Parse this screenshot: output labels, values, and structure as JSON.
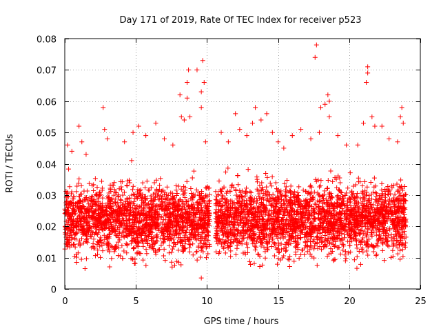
{
  "chart_data": {
    "type": "scatter",
    "title": "Day 171 of 2019, Rate Of TEC Index for receiver p523",
    "xlabel": "GPS time / hours",
    "ylabel": "ROTI / TECUs",
    "xlim": [
      0,
      25
    ],
    "ylim": [
      0,
      0.08
    ],
    "x_ticks": [
      "0",
      "5",
      "10",
      "15",
      "20",
      "25"
    ],
    "y_ticks": [
      "0",
      "0.01",
      "0.02",
      "0.03",
      "0.04",
      "0.05",
      "0.06",
      "0.07",
      "0.08"
    ],
    "grid": true,
    "marker": "+",
    "series": [
      {
        "color": "#ff0000",
        "points": [
          [
            0.2,
            0.046
          ],
          [
            0.5,
            0.044
          ],
          [
            1.0,
            0.052
          ],
          [
            1.2,
            0.047
          ],
          [
            1.5,
            0.043
          ],
          [
            2.7,
            0.058
          ],
          [
            2.8,
            0.051
          ],
          [
            3.0,
            0.048
          ],
          [
            4.2,
            0.047
          ],
          [
            4.8,
            0.05
          ],
          [
            5.2,
            0.052
          ],
          [
            5.7,
            0.049
          ],
          [
            6.4,
            0.053
          ],
          [
            7.0,
            0.048
          ],
          [
            7.6,
            0.046
          ],
          [
            8.1,
            0.062
          ],
          [
            8.2,
            0.055
          ],
          [
            8.4,
            0.054
          ],
          [
            8.6,
            0.066
          ],
          [
            8.6,
            0.061
          ],
          [
            8.7,
            0.07
          ],
          [
            8.8,
            0.055
          ],
          [
            9.3,
            0.07
          ],
          [
            9.6,
            0.063
          ],
          [
            9.6,
            0.058
          ],
          [
            9.7,
            0.073
          ],
          [
            9.8,
            0.066
          ],
          [
            9.9,
            0.047
          ],
          [
            9.6,
            0.0035
          ],
          [
            11.0,
            0.05
          ],
          [
            11.5,
            0.047
          ],
          [
            12.0,
            0.056
          ],
          [
            12.3,
            0.051
          ],
          [
            12.8,
            0.049
          ],
          [
            13.2,
            0.053
          ],
          [
            13.4,
            0.058
          ],
          [
            13.8,
            0.054
          ],
          [
            14.2,
            0.056
          ],
          [
            14.6,
            0.05
          ],
          [
            15.0,
            0.047
          ],
          [
            15.4,
            0.045
          ],
          [
            16.0,
            0.049
          ],
          [
            16.6,
            0.051
          ],
          [
            17.3,
            0.048
          ],
          [
            17.6,
            0.074
          ],
          [
            17.7,
            0.078
          ],
          [
            17.9,
            0.05
          ],
          [
            18.0,
            0.058
          ],
          [
            18.3,
            0.059
          ],
          [
            18.5,
            0.062
          ],
          [
            18.6,
            0.06
          ],
          [
            18.6,
            0.055
          ],
          [
            19.2,
            0.049
          ],
          [
            19.8,
            0.046
          ],
          [
            20.6,
            0.046
          ],
          [
            21.0,
            0.053
          ],
          [
            21.2,
            0.066
          ],
          [
            21.3,
            0.071
          ],
          [
            21.3,
            0.069
          ],
          [
            21.6,
            0.055
          ],
          [
            21.8,
            0.052
          ],
          [
            22.3,
            0.052
          ],
          [
            22.8,
            0.048
          ],
          [
            23.4,
            0.047
          ],
          [
            23.6,
            0.055
          ],
          [
            23.7,
            0.058
          ],
          [
            23.8,
            0.053
          ]
        ],
        "dense_band": {
          "description_segments": [
            {
              "x_range": [
                0,
                10.2
              ],
              "y_range": [
                0.004,
                0.042
              ]
            },
            {
              "x_range": [
                10.6,
                24
              ],
              "y_range": [
                0.004,
                0.042
              ]
            }
          ]
        }
      }
    ]
  }
}
